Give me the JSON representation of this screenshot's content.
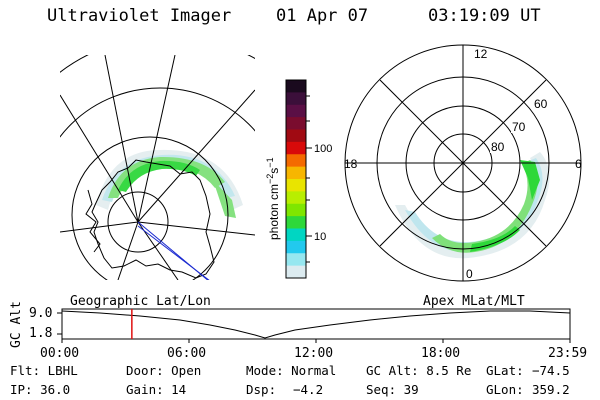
{
  "header": {
    "instrument": "Ultraviolet Imager",
    "date": "01 Apr 07",
    "time": "03:19:09 UT"
  },
  "colorbar": {
    "unit_label": "photon cm",
    "unit_exp1": "−2",
    "unit_mid": "s",
    "unit_exp2": "−1",
    "ticks": [
      "100",
      "10"
    ],
    "colors": [
      "#1a0a1e",
      "#3b0f3a",
      "#5a0f45",
      "#7a0c2e",
      "#a00a12",
      "#d80a0a",
      "#f46a00",
      "#f7b600",
      "#e9e400",
      "#b8ee00",
      "#7fe600",
      "#2ed83a",
      "#00d6c2",
      "#22c9ee",
      "#96e7f0",
      "#dcebf0"
    ]
  },
  "polar": {
    "mlt_labels": [
      "12",
      "18",
      "6",
      "0"
    ],
    "mlat_labels": [
      "60",
      "70",
      "80"
    ]
  },
  "coord_labels": {
    "left": "Geographic Lat/Lon",
    "right": "Apex MLat/MLT"
  },
  "timeline": {
    "ylabel": "GC Alt",
    "y_ticks": [
      "9.0",
      "1.8"
    ],
    "x_ticks": [
      "00:00",
      "06:00",
      "12:00",
      "18:00",
      "23:59"
    ],
    "marker_hour": 3.3,
    "marker_color": "#e01010"
  },
  "footer": {
    "flt": "Flt: LBHL",
    "ip": "IP: 36.0",
    "door": "Door: Open",
    "gain": "Gain: 14",
    "mode": "Mode: Normal",
    "dsp_label": "Dsp:",
    "dsp_value": "−4.2",
    "gc_alt": "GC Alt: 8.5 Re",
    "seq": "Seq: 39",
    "glat_label": "GLat:",
    "glat_value": "−74.5",
    "glon_label": "GLon:",
    "glon_value": "359.2"
  }
}
